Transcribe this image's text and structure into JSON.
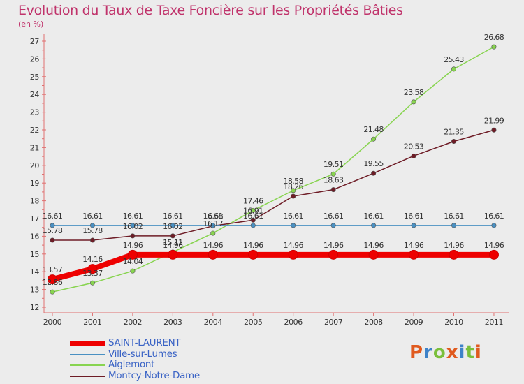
{
  "chart_data": {
    "type": "line",
    "title": "Evolution du Taux de Taxe Foncière sur les Propriétés Bâties",
    "ylabel": "(en %)",
    "xlabel": "",
    "x": [
      "2000",
      "2001",
      "2002",
      "2003",
      "2004",
      "2005",
      "2006",
      "2007",
      "2008",
      "2009",
      "2010",
      "2011"
    ],
    "yticks": [
      12,
      13,
      14,
      15,
      16,
      17,
      18,
      19,
      20,
      21,
      22,
      23,
      24,
      25,
      26,
      27
    ],
    "ylim": [
      12,
      27.4
    ],
    "grid": false,
    "legend_position": "bottom-left",
    "series": [
      {
        "name": "SAINT-LAURENT",
        "color": "#ee0000",
        "values": [
          13.57,
          14.16,
          14.96,
          14.96,
          14.96,
          14.96,
          14.96,
          14.96,
          14.96,
          14.96,
          14.96,
          14.96
        ],
        "labels": [
          "13.57",
          "14.16",
          "14.96",
          "14.96",
          "14.96",
          "14.96",
          "14.96",
          "14.96",
          "14.96",
          "14.96",
          "14.96",
          "14.96"
        ]
      },
      {
        "name": "Ville-sur-Lumes",
        "color": "#4a90c2",
        "values": [
          16.61,
          16.61,
          16.61,
          16.61,
          16.61,
          16.61,
          16.61,
          16.61,
          16.61,
          16.61,
          16.61,
          16.61
        ],
        "labels": [
          "16.61",
          "16.61",
          "16.61",
          "16.61",
          "16.61",
          "16.61",
          "16.61",
          "16.61",
          "16.61",
          "16.61",
          "16.61",
          "16.61"
        ]
      },
      {
        "name": "Aiglemont",
        "color": "#88d450",
        "values": [
          12.86,
          13.37,
          14.04,
          15.11,
          16.17,
          17.46,
          18.58,
          19.51,
          21.48,
          23.58,
          25.43,
          26.68
        ],
        "labels": [
          "12.86",
          "13.37",
          "14.04",
          "15.11",
          "16.17",
          "17.46",
          "18.58",
          "19.51",
          "21.48",
          "23.58",
          "25.43",
          "26.68"
        ]
      },
      {
        "name": "Montcy-Notre-Dame",
        "color": "#6e1c26",
        "values": [
          15.78,
          15.78,
          16.02,
          16.02,
          16.58,
          16.91,
          18.26,
          18.63,
          19.55,
          20.53,
          21.35,
          21.99
        ],
        "labels": [
          "15.78",
          "15.78",
          "16.02",
          "16.02",
          "16.58",
          "16.91",
          "18.26",
          "18.63",
          "19.55",
          "20.53",
          "21.35",
          "21.99"
        ]
      }
    ]
  },
  "logo": {
    "text": "Proxiti",
    "letter_colors": [
      "#e05a1e",
      "#3e82c8",
      "#7abf3b",
      "#e05a1e",
      "#3e82c8",
      "#7abf3b",
      "#e05a1e"
    ]
  }
}
